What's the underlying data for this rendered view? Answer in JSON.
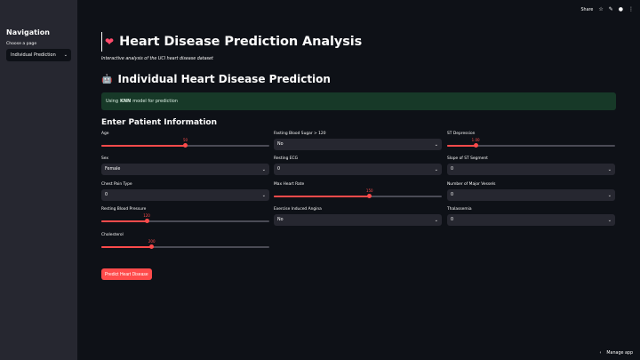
{
  "sidebar": {
    "title": "Navigation",
    "select_label": "Choose a page",
    "select_value": "Individual Prediction"
  },
  "topbar": {
    "share": "Share"
  },
  "page": {
    "title": "Heart Disease Prediction Analysis",
    "subtitle": "Interactive analysis of the UCI heart disease dataset",
    "section_title": "Individual Heart Disease Prediction",
    "info_prefix": "Using",
    "info_model": "KNN",
    "info_suffix": "model for prediction",
    "form_title": "Enter Patient Information",
    "predict_button": "Predict Heart Disease"
  },
  "fields": {
    "age": {
      "label": "Age",
      "value": "50",
      "fraction": 0.5
    },
    "sex": {
      "label": "Sex",
      "value": "Female"
    },
    "chest_pain": {
      "label": "Chest Pain Type",
      "value": "0"
    },
    "resting_bp": {
      "label": "Resting Blood Pressure",
      "value": "120",
      "fraction": 0.27
    },
    "cholesterol": {
      "label": "Cholesterol",
      "value": "200",
      "fraction": 0.3
    },
    "fbs": {
      "label": "Fasting Blood Sugar > 120",
      "value": "No"
    },
    "restecg": {
      "label": "Resting ECG",
      "value": "0"
    },
    "max_hr": {
      "label": "Max Heart Rate",
      "value": "150",
      "fraction": 0.57
    },
    "exang": {
      "label": "Exercise Induced Angina",
      "value": "No"
    },
    "st_depression": {
      "label": "ST Depression",
      "value": "1.00",
      "fraction": 0.17
    },
    "slope": {
      "label": "Slope of ST Segment",
      "value": "0"
    },
    "vessels": {
      "label": "Number of Major Vessels",
      "value": "0"
    },
    "thal": {
      "label": "Thalassemia",
      "value": "0"
    }
  },
  "footer": {
    "manage": "Manage app"
  },
  "colors": {
    "accent": "#ff4b4b",
    "background": "#0e1117",
    "sidebar": "#262730",
    "info_bg": "#173928"
  },
  "icons": [
    "heart-icon",
    "robot-face-icon",
    "star-icon",
    "edit-icon",
    "github-icon",
    "more-icon",
    "chevron-down-icon",
    "chevron-left-icon"
  ]
}
